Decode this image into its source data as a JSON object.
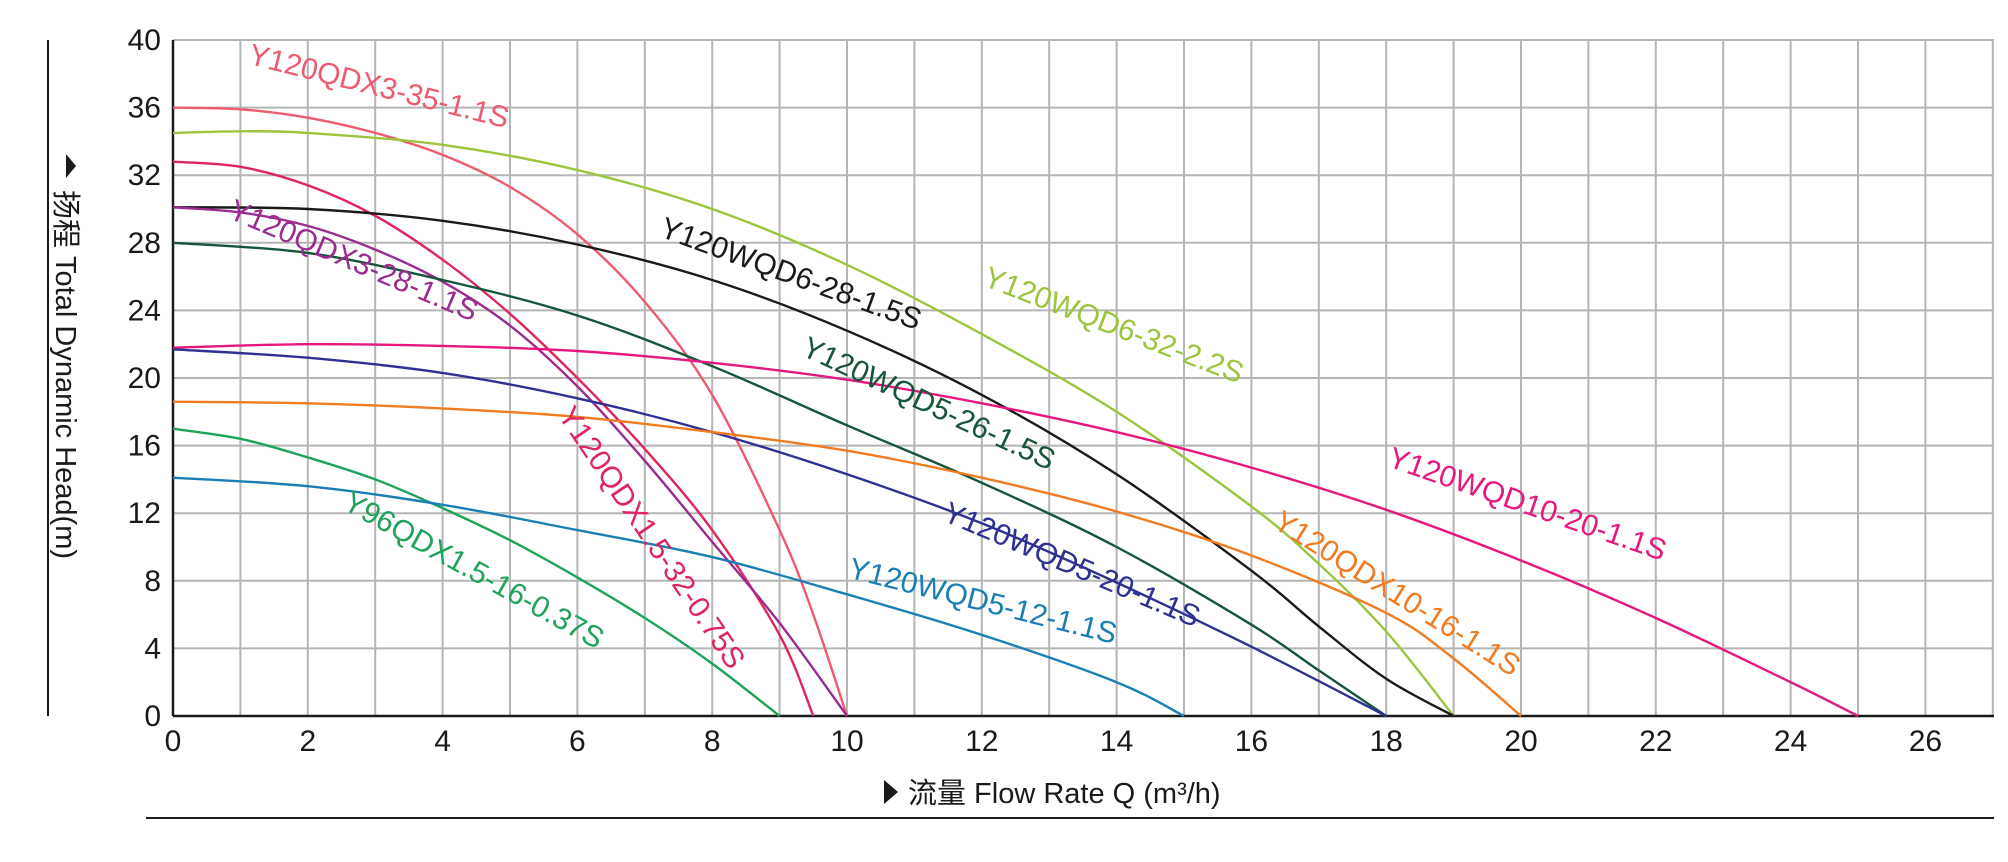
{
  "chart_data": {
    "type": "line",
    "title": "",
    "xlabel": "流量 Flow Rate Q (m³/h)",
    "ylabel": "扬程 Total Dynamic Head(m)",
    "xlim": [
      0,
      27
    ],
    "ylim": [
      0,
      40
    ],
    "xticks": [
      0,
      2,
      4,
      6,
      8,
      10,
      12,
      14,
      16,
      18,
      20,
      22,
      24,
      26
    ],
    "yticks": [
      0,
      4,
      8,
      12,
      16,
      20,
      24,
      28,
      32,
      36,
      40
    ],
    "grid": true,
    "legend": "inline labels on curves",
    "series": [
      {
        "name": "Y120QDX3-35-1.1S",
        "color": "#ee5b6e",
        "x": [
          0,
          1,
          2,
          3,
          4,
          5,
          6,
          7,
          8,
          9,
          9.5,
          10
        ],
        "y": [
          36,
          35.9,
          35.4,
          34.5,
          33.2,
          31.3,
          28.5,
          24.5,
          19,
          11,
          6,
          0
        ]
      },
      {
        "name": "Y120WQD6-32-2.2S",
        "color": "#9bc53d",
        "x": [
          0,
          1,
          2,
          4,
          6,
          8,
          10,
          12,
          14,
          16,
          17,
          18,
          19
        ],
        "y": [
          34.5,
          34.6,
          34.5,
          33.8,
          32.3,
          30,
          26.7,
          22.6,
          18,
          12.4,
          9,
          5,
          0
        ]
      },
      {
        "name": "Y120QDX1.5-32-0.75S",
        "color": "#e0245e",
        "x": [
          0,
          1,
          2,
          3,
          4,
          5,
          6,
          7,
          8,
          9,
          9.5
        ],
        "y": [
          32.8,
          32.5,
          31.4,
          29.6,
          27,
          23.8,
          20,
          15.8,
          11,
          4.8,
          0
        ]
      },
      {
        "name": "Y120WQD6-28-1.5S",
        "color": "#1a1a1a",
        "x": [
          0,
          2,
          4,
          6,
          8,
          10,
          12,
          14,
          16,
          17,
          18,
          19
        ],
        "y": [
          30.1,
          30,
          29.3,
          27.9,
          25.8,
          22.8,
          19,
          14.3,
          8.6,
          5.3,
          2.2,
          0
        ]
      },
      {
        "name": "Y120QDX3-28-1.1S",
        "color": "#9b2c8f",
        "x": [
          0,
          1,
          2,
          3,
          4,
          5,
          6,
          7,
          8,
          9,
          10
        ],
        "y": [
          30.1,
          29.8,
          29,
          27.6,
          25.7,
          23.1,
          19.5,
          15.1,
          10.3,
          5.5,
          0
        ]
      },
      {
        "name": "Y120WQD5-26-1.5S",
        "color": "#17553a",
        "x": [
          0,
          2,
          4,
          6,
          8,
          10,
          12,
          14,
          16,
          17,
          18
        ],
        "y": [
          28,
          27.4,
          25.8,
          23.7,
          20.7,
          17.2,
          13.8,
          10,
          5.4,
          2.7,
          0
        ]
      },
      {
        "name": "Y120WQD10-20-1.1S",
        "color": "#e6177f",
        "x": [
          0,
          2,
          4,
          6,
          8,
          10,
          12,
          14,
          16,
          18,
          20,
          22,
          24,
          25
        ],
        "y": [
          21.8,
          22,
          21.9,
          21.6,
          20.9,
          19.9,
          18.5,
          16.8,
          14.7,
          12.2,
          9.2,
          5.8,
          2,
          0
        ]
      },
      {
        "name": "Y120WQD5-20-1.1S",
        "color": "#2e3192",
        "x": [
          0,
          2,
          4,
          6,
          8,
          10,
          12,
          14,
          16,
          18
        ],
        "y": [
          21.7,
          21.2,
          20.3,
          18.8,
          16.8,
          14.3,
          11.4,
          7.9,
          4.1,
          0
        ]
      },
      {
        "name": "Y120QDX10-16-1.1S",
        "color": "#f07b20",
        "x": [
          0,
          2,
          4,
          6,
          8,
          10,
          12,
          14,
          16,
          18,
          19,
          20
        ],
        "y": [
          18.6,
          18.5,
          18.2,
          17.7,
          16.8,
          15.7,
          14.1,
          12.1,
          9.5,
          6.1,
          3.4,
          0
        ]
      },
      {
        "name": "Y96QDX1.5-16-0.37S",
        "color": "#1fa35a",
        "x": [
          0,
          1,
          2,
          3,
          4,
          5,
          6,
          7,
          8,
          9
        ],
        "y": [
          17,
          16.4,
          15.3,
          14,
          12.3,
          10.4,
          8.2,
          5.8,
          3.1,
          0
        ]
      },
      {
        "name": "Y120WQD5-12-1.1S",
        "color": "#1b7fb4",
        "x": [
          0,
          2,
          4,
          6,
          8,
          10,
          12,
          14,
          15
        ],
        "y": [
          14.1,
          13.6,
          12.5,
          11,
          9.4,
          7.2,
          4.8,
          2,
          0
        ]
      }
    ]
  }
}
